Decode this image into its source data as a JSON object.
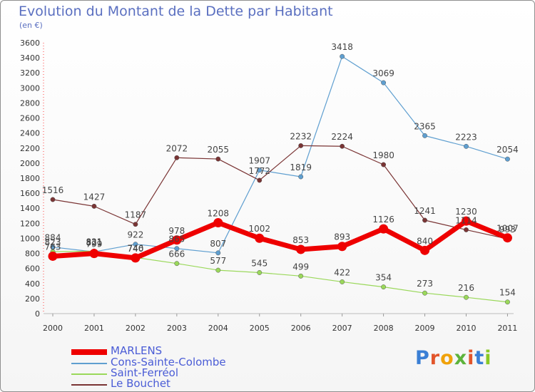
{
  "title": "Evolution du Montant de la Dette par Habitant",
  "unit_label": "(en €)",
  "logo": {
    "text": "Proxiti",
    "letter_colors": [
      "#3a7fd5",
      "#e2552b",
      "#f0a20a",
      "#5db33b",
      "#e2552b",
      "#3a7fd5",
      "#8ac926"
    ]
  },
  "chart_data": {
    "type": "line",
    "x": [
      "2000",
      "2001",
      "2002",
      "2003",
      "2004",
      "2005",
      "2006",
      "2007",
      "2008",
      "2009",
      "2010",
      "2011"
    ],
    "ylim": [
      0,
      3600
    ],
    "yticks": [
      0,
      200,
      400,
      600,
      800,
      1000,
      1200,
      1400,
      1600,
      1800,
      2000,
      2200,
      2400,
      2600,
      2800,
      3000,
      3200,
      3400,
      3600
    ],
    "grid": false,
    "legend_position": "bottom-left",
    "series": [
      {
        "name": "MARLENS",
        "color": "#ee0000",
        "values": [
          763,
          799,
          740,
          978,
          1208,
          1002,
          853,
          893,
          1126,
          840,
          1230,
          1007
        ],
        "labels": [
          "763",
          "799",
          "740",
          "978",
          "1208",
          "1002",
          "853",
          "893",
          "1126",
          "840",
          "1230",
          "1007"
        ]
      },
      {
        "name": "Cons-Sainte-Colombe",
        "color": "#5f9fd0",
        "values": [
          884,
          821,
          922,
          865,
          807,
          1907,
          1819,
          3418,
          3069,
          2365,
          2223,
          2054
        ],
        "labels": [
          "884",
          "821",
          "922",
          "865",
          "807",
          "1907",
          "1819",
          "3418",
          "3069",
          "2365",
          "2223",
          "2054"
        ]
      },
      {
        "name": "Saint-Ferréol",
        "color": "#9ad85a",
        "values": [
          823,
          831,
          746,
          666,
          577,
          545,
          499,
          422,
          354,
          273,
          216,
          154
        ],
        "labels": [
          "823",
          "831",
          "746",
          "666",
          "577",
          "545",
          "499",
          "422",
          "354",
          "273",
          "216",
          "154"
        ]
      },
      {
        "name": "Le Bouchet",
        "color": "#7a3434",
        "values": [
          1516,
          1427,
          1187,
          2072,
          2055,
          1772,
          2232,
          2224,
          1980,
          1241,
          1114,
          993
        ],
        "labels": [
          "1516",
          "1427",
          "1187",
          "2072",
          "2055",
          "1772",
          "2232",
          "2224",
          "1980",
          "1241",
          "1114",
          "993"
        ]
      }
    ]
  }
}
